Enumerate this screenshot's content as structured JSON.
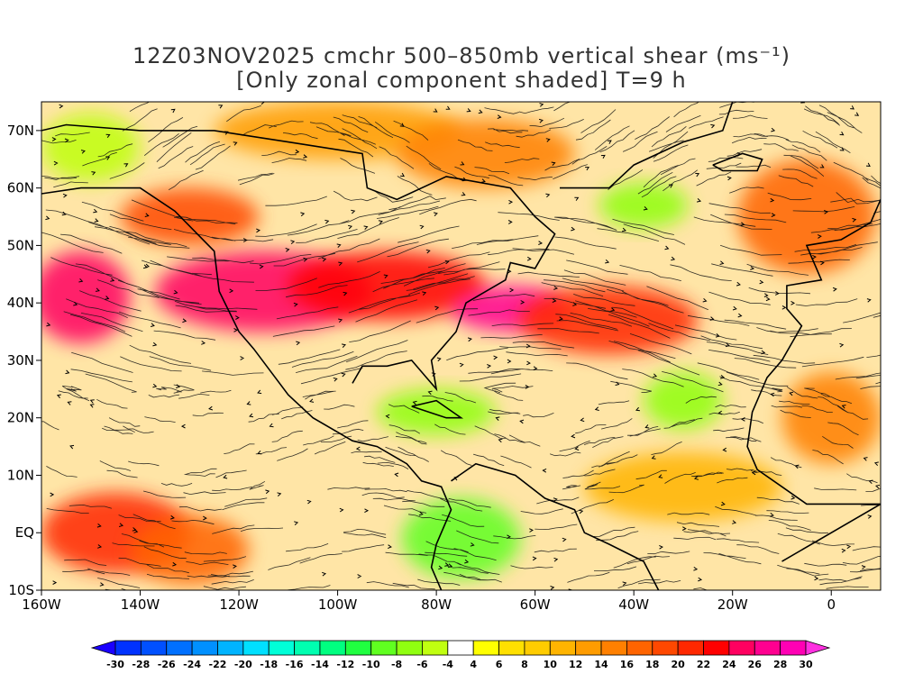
{
  "title": {
    "line1": "12Z03NOV2025 cmchr 500–850mb vertical shear (ms⁻¹)",
    "line2": "[Only zonal component shaded] T=9 h"
  },
  "map": {
    "lon_range": [
      -160,
      10
    ],
    "lat_range": [
      -10,
      75
    ],
    "lon_ticks": [
      {
        "value": -160,
        "label": "160W"
      },
      {
        "value": -140,
        "label": "140W"
      },
      {
        "value": -120,
        "label": "120W"
      },
      {
        "value": -100,
        "label": "100W"
      },
      {
        "value": -80,
        "label": "80W"
      },
      {
        "value": -60,
        "label": "60W"
      },
      {
        "value": -40,
        "label": "40W"
      },
      {
        "value": -20,
        "label": "20W"
      },
      {
        "value": 0,
        "label": "0"
      }
    ],
    "lat_ticks": [
      {
        "value": 70,
        "label": "70N"
      },
      {
        "value": 60,
        "label": "60N"
      },
      {
        "value": 50,
        "label": "50N"
      },
      {
        "value": 40,
        "label": "40N"
      },
      {
        "value": 30,
        "label": "30N"
      },
      {
        "value": 20,
        "label": "20N"
      },
      {
        "value": 10,
        "label": "10N"
      },
      {
        "value": 0,
        "label": "EQ"
      },
      {
        "value": -10,
        "label": "10S"
      }
    ],
    "shear_regions": [
      {
        "lon": -115,
        "lat": 42,
        "rlon": 22,
        "rlat": 7,
        "value": 24
      },
      {
        "lon": -90,
        "lat": 43,
        "rlon": 20,
        "rlat": 6,
        "value": 22
      },
      {
        "lon": -65,
        "lat": 39,
        "rlon": 12,
        "rlat": 4,
        "value": 26
      },
      {
        "lon": -45,
        "lat": 37,
        "rlon": 18,
        "rlat": 6,
        "value": 20
      },
      {
        "lon": -152,
        "lat": 41,
        "rlon": 10,
        "rlat": 8,
        "value": 24
      },
      {
        "lon": -130,
        "lat": 55,
        "rlon": 14,
        "rlat": 5,
        "value": 18
      },
      {
        "lon": -145,
        "lat": 0,
        "rlon": 15,
        "rlat": 7,
        "value": 20
      },
      {
        "lon": -130,
        "lat": -3,
        "rlon": 12,
        "rlat": 6,
        "value": 16
      },
      {
        "lon": -80,
        "lat": 21,
        "rlon": 12,
        "rlat": 4,
        "value": -8
      },
      {
        "lon": -30,
        "lat": 23,
        "rlon": 8,
        "rlat": 5,
        "value": -8
      },
      {
        "lon": -75,
        "lat": -1,
        "rlon": 12,
        "rlat": 7,
        "value": -10
      },
      {
        "lon": -38,
        "lat": 57,
        "rlon": 9,
        "rlat": 4,
        "value": -8
      },
      {
        "lon": -150,
        "lat": 67,
        "rlon": 10,
        "rlat": 6,
        "value": -6
      },
      {
        "lon": -5,
        "lat": 55,
        "rlon": 14,
        "rlat": 10,
        "value": 16
      },
      {
        "lon": 0,
        "lat": 20,
        "rlon": 10,
        "rlat": 8,
        "value": 14
      },
      {
        "lon": -100,
        "lat": 70,
        "rlon": 25,
        "rlat": 5,
        "value": 12
      },
      {
        "lon": -70,
        "lat": 66,
        "rlon": 18,
        "rlat": 6,
        "value": 14
      },
      {
        "lon": -30,
        "lat": 8,
        "rlon": 20,
        "rlat": 6,
        "value": 10
      }
    ]
  },
  "colorbar": {
    "levels": [
      -30,
      -28,
      -26,
      -24,
      -22,
      -20,
      -18,
      -16,
      -14,
      -12,
      -10,
      -8,
      -6,
      -4,
      4,
      6,
      8,
      10,
      12,
      14,
      16,
      18,
      20,
      22,
      24,
      26,
      28,
      30
    ],
    "labels": [
      "-30",
      "-28",
      "-26",
      "-24",
      "-22",
      "-20",
      "-18",
      "-16",
      "-14",
      "-12",
      "-10",
      "-8",
      "-6",
      "-4",
      "4",
      "6",
      "8",
      "10",
      "12",
      "14",
      "16",
      "18",
      "20",
      "22",
      "24",
      "26",
      "28",
      "30"
    ],
    "colors": [
      "#1a00ff",
      "#0032ff",
      "#0050ff",
      "#0070ff",
      "#0090ff",
      "#00b4ff",
      "#00e0ff",
      "#00ffd8",
      "#00ffb0",
      "#00ff80",
      "#20ff40",
      "#60ff20",
      "#90ff10",
      "#c0ff10",
      "#ffffff",
      "#ffff00",
      "#ffe000",
      "#ffcc00",
      "#ffb400",
      "#ff9c00",
      "#ff8000",
      "#ff6400",
      "#ff4800",
      "#ff2800",
      "#ff0000",
      "#ff0060",
      "#ff0090",
      "#ff00b4",
      "#ff30e0"
    ]
  }
}
